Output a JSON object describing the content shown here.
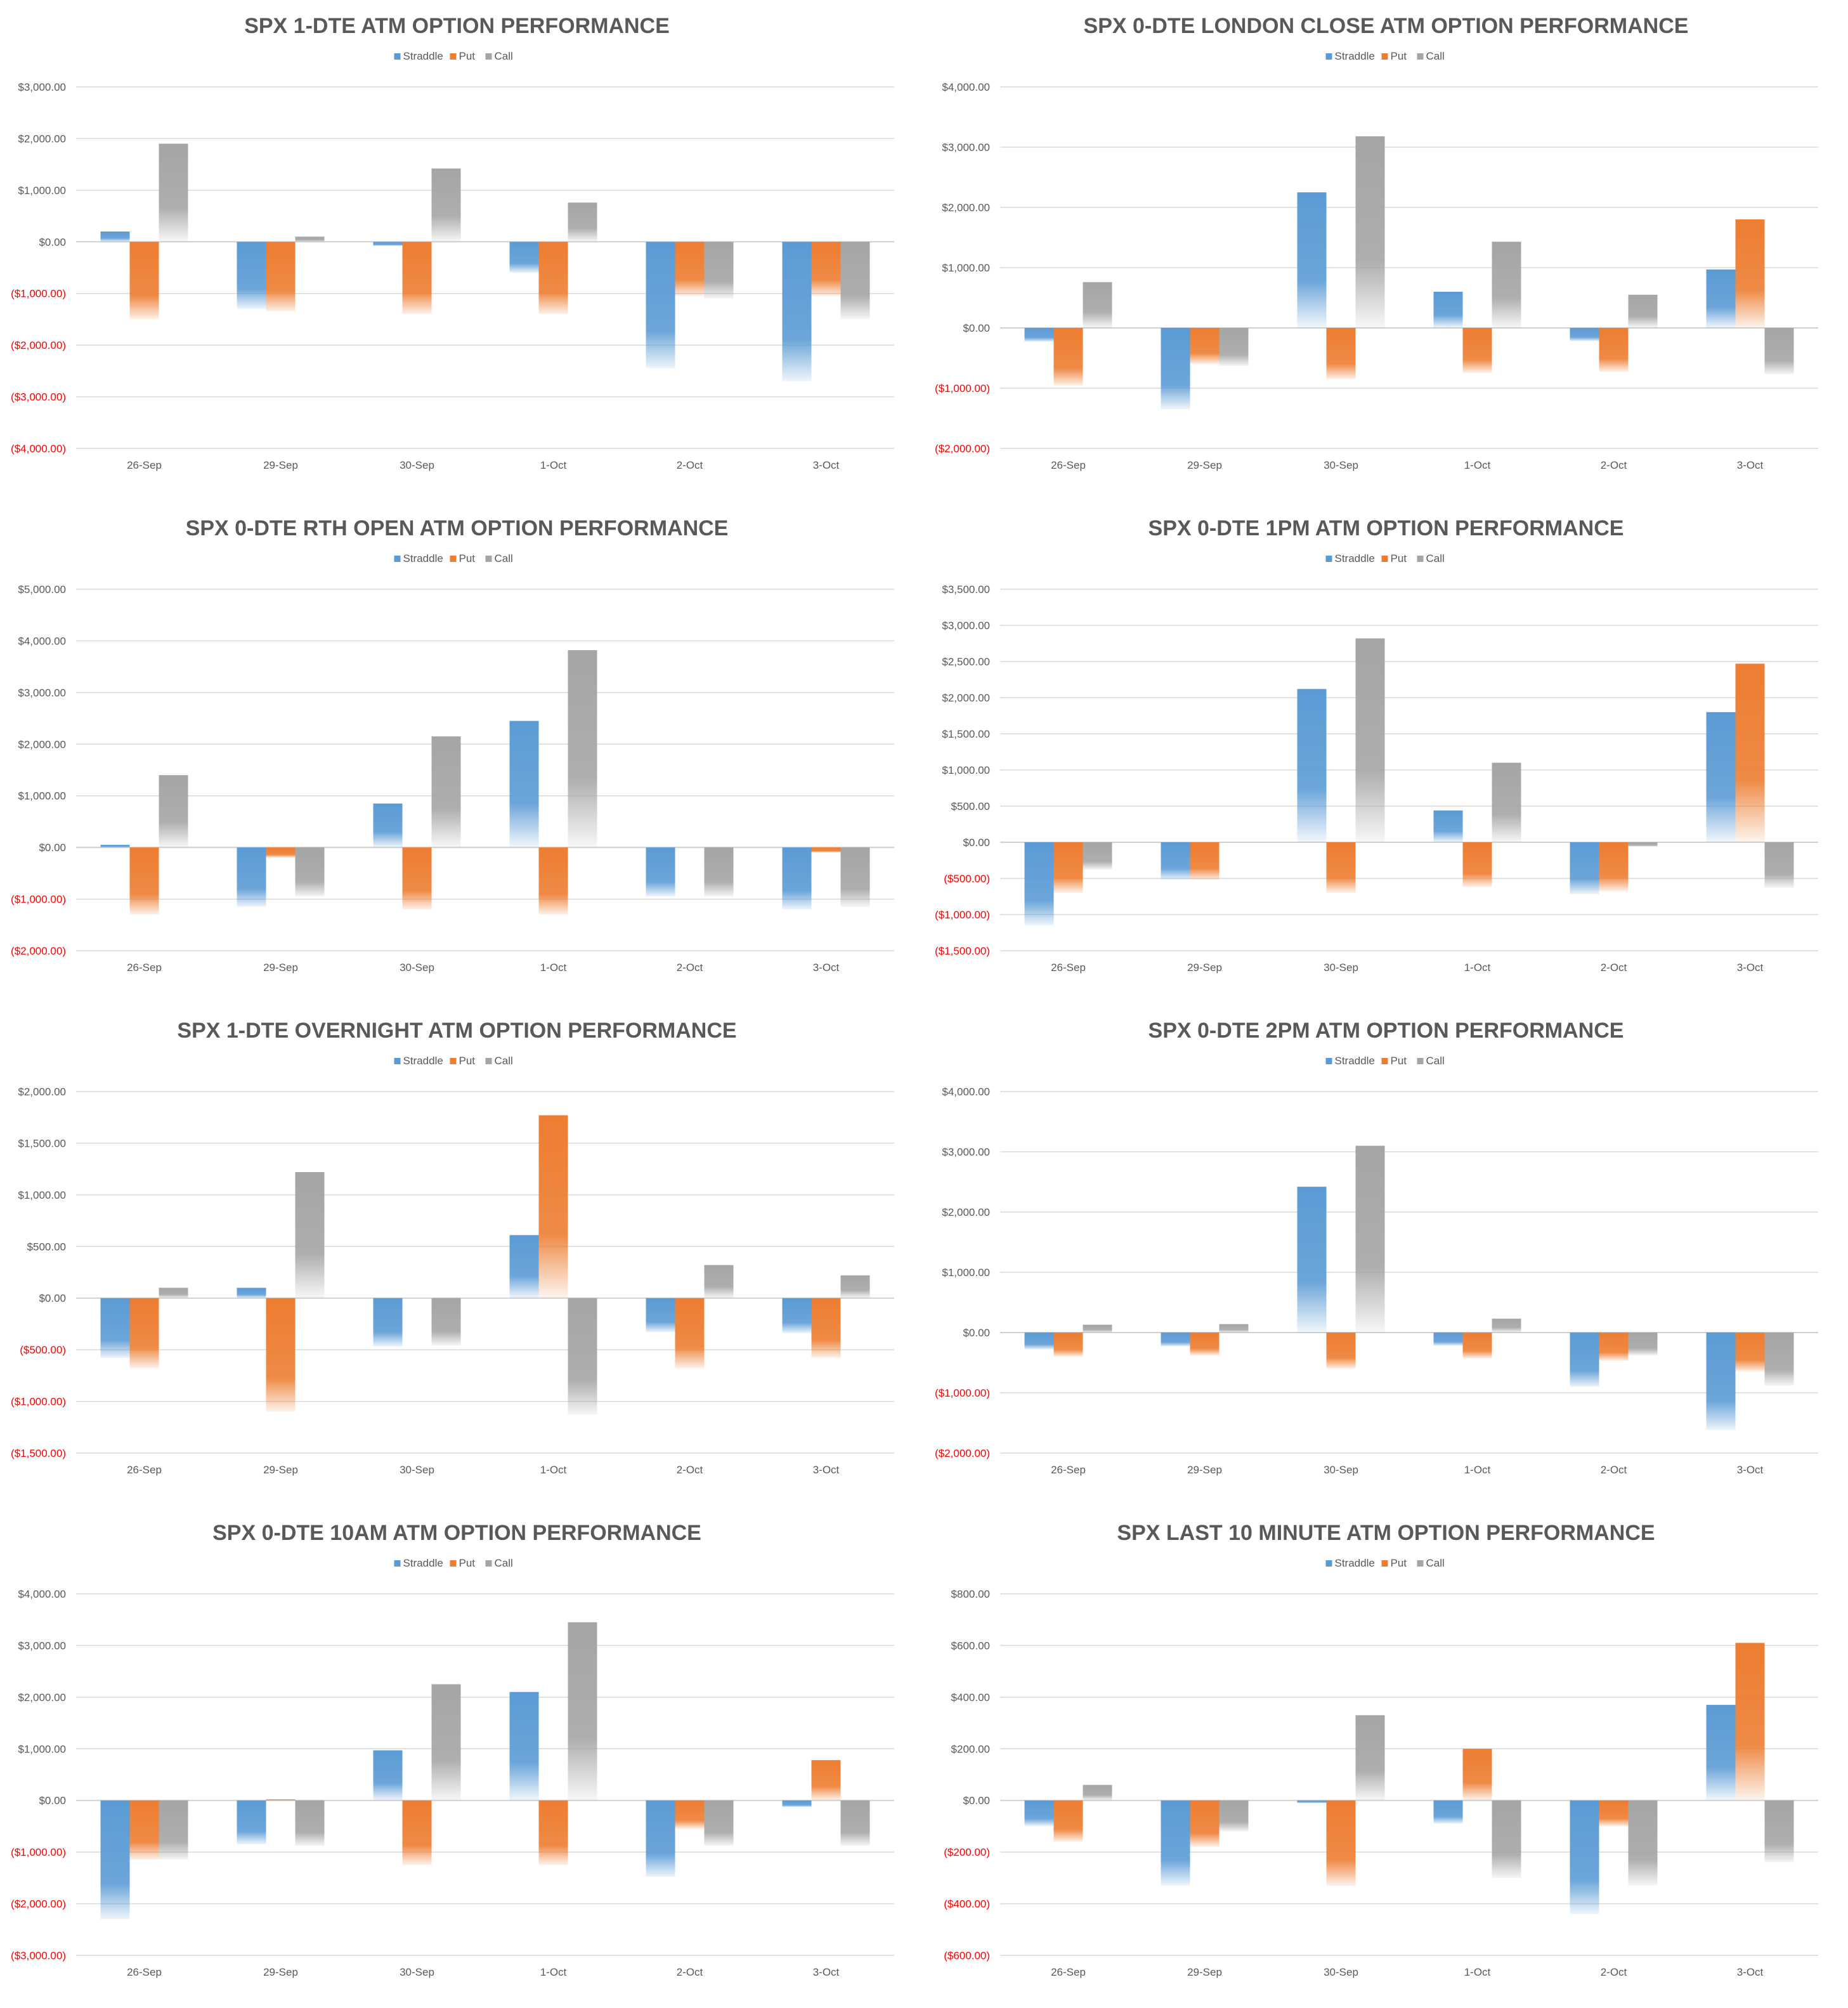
{
  "chart_data": [
    {
      "type": "bar",
      "title": "SPX 1-DTE ATM OPTION PERFORMANCE",
      "categories": [
        "26-Sep",
        "29-Sep",
        "30-Sep",
        "1-Oct",
        "2-Oct",
        "3-Oct"
      ],
      "series": [
        {
          "name": "Straddle",
          "values": [
            200,
            -1300,
            -80,
            -600,
            -2450,
            -2700
          ]
        },
        {
          "name": "Put",
          "values": [
            -1500,
            -1350,
            -1400,
            -1400,
            -1050,
            -1050
          ]
        },
        {
          "name": "Call",
          "values": [
            1900,
            100,
            1420,
            760,
            -1100,
            -1500
          ]
        }
      ],
      "ylim": [
        -4000,
        3000
      ],
      "yticks": [
        3000,
        2000,
        1000,
        0,
        -1000,
        -2000,
        -3000,
        -4000
      ],
      "ytick_labels": [
        "$3,000.00",
        "$2,000.00",
        "$1,000.00",
        "$0.00",
        "($1,000.00)",
        "($2,000.00)",
        "($3,000.00)",
        "($4,000.00)"
      ],
      "legend": "top-center"
    },
    {
      "type": "bar",
      "title": "SPX 0-DTE  LONDON CLOSE ATM OPTION PERFORMANCE",
      "categories": [
        "26-Sep",
        "29-Sep",
        "30-Sep",
        "1-Oct",
        "2-Oct",
        "3-Oct"
      ],
      "series": [
        {
          "name": "Straddle",
          "values": [
            -230,
            -1350,
            2250,
            600,
            -220,
            970
          ]
        },
        {
          "name": "Put",
          "values": [
            -960,
            -600,
            -850,
            -750,
            -730,
            1800
          ]
        },
        {
          "name": "Call",
          "values": [
            760,
            -630,
            3180,
            1430,
            550,
            -770
          ]
        }
      ],
      "ylim": [
        -2000,
        4000
      ],
      "yticks": [
        4000,
        3000,
        2000,
        1000,
        0,
        -1000,
        -2000
      ],
      "ytick_labels": [
        "$4,000.00",
        "$3,000.00",
        "$2,000.00",
        "$1,000.00",
        "$0.00",
        "($1,000.00)",
        "($2,000.00)"
      ],
      "legend": "top-center"
    },
    {
      "type": "bar",
      "title": "SPX 0-DTE RTH OPEN ATM OPTION PERFORMANCE",
      "categories": [
        "26-Sep",
        "29-Sep",
        "30-Sep",
        "1-Oct",
        "2-Oct",
        "3-Oct"
      ],
      "series": [
        {
          "name": "Straddle",
          "values": [
            50,
            -1150,
            850,
            2450,
            -950,
            -1200
          ]
        },
        {
          "name": "Put",
          "values": [
            -1300,
            -200,
            -1200,
            -1300,
            0,
            -100
          ]
        },
        {
          "name": "Call",
          "values": [
            1400,
            -950,
            2150,
            3820,
            -950,
            -1150
          ]
        }
      ],
      "ylim": [
        -2000,
        5000
      ],
      "yticks": [
        5000,
        4000,
        3000,
        2000,
        1000,
        0,
        -1000,
        -2000
      ],
      "ytick_labels": [
        "$5,000.00",
        "$4,000.00",
        "$3,000.00",
        "$2,000.00",
        "$1,000.00",
        "$0.00",
        "($1,000.00)",
        "($2,000.00)"
      ],
      "legend": "top-center"
    },
    {
      "type": "bar",
      "title": "SPX 0-DTE 1PM ATM OPTION PERFORMANCE",
      "categories": [
        "26-Sep",
        "29-Sep",
        "30-Sep",
        "1-Oct",
        "2-Oct",
        "3-Oct"
      ],
      "series": [
        {
          "name": "Straddle",
          "values": [
            -1150,
            -520,
            2120,
            440,
            -720,
            1800
          ]
        },
        {
          "name": "Put",
          "values": [
            -700,
            -520,
            -700,
            -620,
            -680,
            2470
          ]
        },
        {
          "name": "Call",
          "values": [
            -380,
            0,
            2820,
            1100,
            -60,
            -630
          ]
        }
      ],
      "ylim": [
        -1500,
        3500
      ],
      "yticks": [
        3500,
        3000,
        2500,
        2000,
        1500,
        1000,
        500,
        0,
        -500,
        -1000,
        -1500
      ],
      "ytick_labels": [
        "$3,500.00",
        "$3,000.00",
        "$2,500.00",
        "$2,000.00",
        "$1,500.00",
        "$1,000.00",
        "$500.00",
        "$0.00",
        "($500.00)",
        "($1,000.00)",
        "($1,500.00)"
      ],
      "legend": "top-center"
    },
    {
      "type": "bar",
      "title": "SPX 1-DTE OVERNIGHT ATM OPTION PERFORMANCE",
      "categories": [
        "26-Sep",
        "29-Sep",
        "30-Sep",
        "1-Oct",
        "2-Oct",
        "3-Oct"
      ],
      "series": [
        {
          "name": "Straddle",
          "values": [
            -580,
            100,
            -470,
            610,
            -330,
            -340
          ]
        },
        {
          "name": "Put",
          "values": [
            -680,
            -1100,
            0,
            1770,
            -680,
            -580
          ]
        },
        {
          "name": "Call",
          "values": [
            100,
            1220,
            -460,
            -1130,
            320,
            220
          ]
        }
      ],
      "ylim": [
        -1500,
        2000
      ],
      "yticks": [
        2000,
        1500,
        1000,
        500,
        0,
        -500,
        -1000,
        -1500
      ],
      "ytick_labels": [
        "$2,000.00",
        "$1,500.00",
        "$1,000.00",
        "$500.00",
        "$0.00",
        "($500.00)",
        "($1,000.00)",
        "($1,500.00)"
      ],
      "legend": "top-center"
    },
    {
      "type": "bar",
      "title": "SPX 0-DTE 2PM ATM OPTION PERFORMANCE",
      "categories": [
        "26-Sep",
        "29-Sep",
        "30-Sep",
        "1-Oct",
        "2-Oct",
        "3-Oct"
      ],
      "series": [
        {
          "name": "Straddle",
          "values": [
            -280,
            -230,
            2420,
            -220,
            -900,
            -1620
          ]
        },
        {
          "name": "Put",
          "values": [
            -400,
            -380,
            -600,
            -430,
            -470,
            -650
          ]
        },
        {
          "name": "Call",
          "values": [
            130,
            140,
            3100,
            230,
            -380,
            -880
          ]
        }
      ],
      "ylim": [
        -2000,
        4000
      ],
      "yticks": [
        4000,
        3000,
        2000,
        1000,
        0,
        -1000,
        -2000
      ],
      "ytick_labels": [
        "$4,000.00",
        "$3,000.00",
        "$2,000.00",
        "$1,000.00",
        "$0.00",
        "($1,000.00)",
        "($2,000.00)"
      ],
      "legend": "top-center"
    },
    {
      "type": "bar",
      "title": "SPX 0-DTE 10AM ATM OPTION PERFORMANCE",
      "categories": [
        "26-Sep",
        "29-Sep",
        "30-Sep",
        "1-Oct",
        "2-Oct",
        "3-Oct"
      ],
      "series": [
        {
          "name": "Straddle",
          "values": [
            -2300,
            -850,
            970,
            2100,
            -1480,
            -130
          ]
        },
        {
          "name": "Put",
          "values": [
            -1150,
            20,
            -1250,
            -1250,
            -550,
            780
          ]
        },
        {
          "name": "Call",
          "values": [
            -1150,
            -880,
            2250,
            3450,
            -880,
            -880
          ]
        }
      ],
      "ylim": [
        -3000,
        4000
      ],
      "yticks": [
        4000,
        3000,
        2000,
        1000,
        0,
        -1000,
        -2000,
        -3000
      ],
      "ytick_labels": [
        "$4,000.00",
        "$3,000.00",
        "$2,000.00",
        "$1,000.00",
        "$0.00",
        "($1,000.00)",
        "($2,000.00)",
        "($3,000.00)"
      ],
      "legend": "top-center"
    },
    {
      "type": "bar",
      "title": "SPX LAST 10 MINUTE ATM OPTION PERFORMANCE",
      "categories": [
        "26-Sep",
        "29-Sep",
        "30-Sep",
        "1-Oct",
        "2-Oct",
        "3-Oct"
      ],
      "series": [
        {
          "name": "Straddle",
          "values": [
            -100,
            -330,
            -10,
            -90,
            -440,
            370
          ]
        },
        {
          "name": "Put",
          "values": [
            -160,
            -180,
            -330,
            200,
            -100,
            610
          ]
        },
        {
          "name": "Call",
          "values": [
            60,
            -120,
            330,
            -300,
            -330,
            -240
          ]
        }
      ],
      "ylim": [
        -600,
        800
      ],
      "yticks": [
        800,
        600,
        400,
        200,
        0,
        -200,
        -400,
        -600
      ],
      "ytick_labels": [
        "$800.00",
        "$600.00",
        "$400.00",
        "$200.00",
        "$0.00",
        "($200.00)",
        "($400.00)",
        "($600.00)"
      ],
      "legend": "top-center"
    }
  ],
  "colors": {
    "Straddle": "#5b9bd5",
    "Put": "#ed7d31",
    "Call": "#a5a5a5",
    "title": "#595959",
    "axis_text": "#595959",
    "negative_label": "#ff0000",
    "gridline": "#d9d9d9"
  }
}
